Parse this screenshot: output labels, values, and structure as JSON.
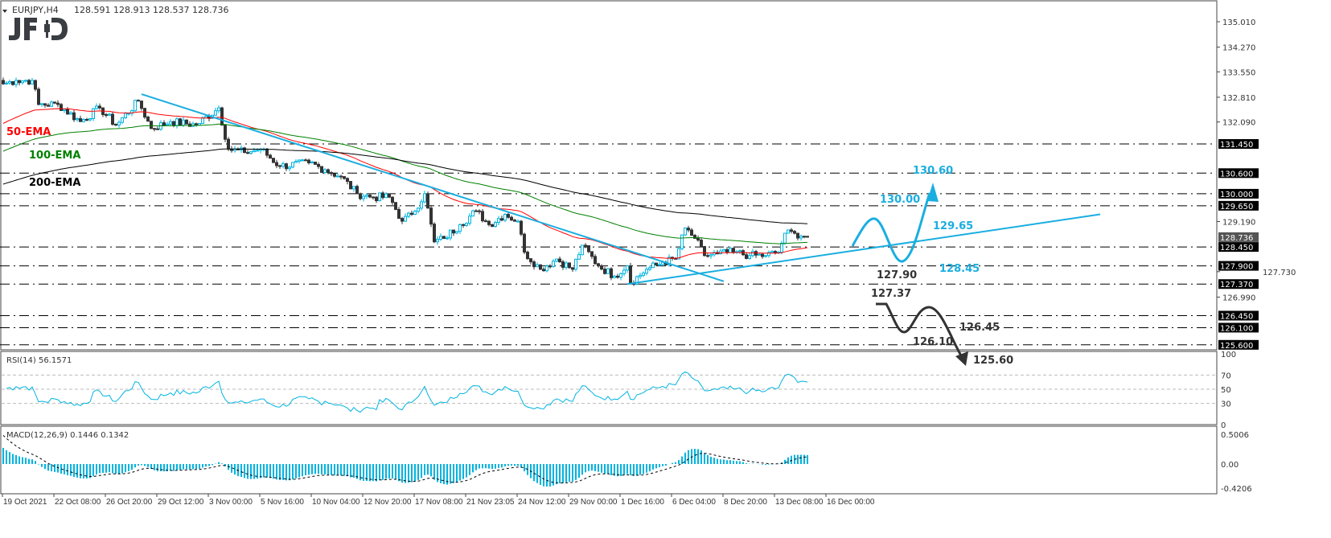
{
  "header": {
    "symbol": "EURJPY,H4",
    "ohlc": "128.591 128.913 128.537 128.736",
    "logo": "JFD"
  },
  "colors": {
    "bull": "#00b4e0",
    "bear": "#333333",
    "ema50": "#ff0000",
    "ema100": "#008000",
    "ema200": "#000000",
    "trend": "#1aaee0",
    "bearish_path": "#333333",
    "label_box": "#000000",
    "current_box": "#555555"
  },
  "chart_data": [
    {
      "type": "candlestick",
      "title": "EURJPY,H4",
      "timeframe": "H4",
      "ylim": [
        125.6,
        135.01
      ],
      "y_ticks": [
        "135.010",
        "134.270",
        "133.550",
        "132.810",
        "132.090",
        "129.190",
        "127.730",
        "126.990"
      ],
      "x_ticks": [
        "19 Oct 2021",
        "22 Oct 08:00",
        "26 Oct 20:00",
        "29 Oct 12:00",
        "3 Nov 00:00",
        "5 Nov 16:00",
        "10 Nov 04:00",
        "12 Nov 20:00",
        "17 Nov 08:00",
        "21 Nov 23:05",
        "24 Nov 12:00",
        "29 Nov 00:00",
        "1 Dec 16:00",
        "6 Dec 04:00",
        "8 Dec 20:00",
        "13 Dec 08:00",
        "16 Dec 00:00"
      ],
      "close_anchors": [
        [
          0,
          133.2
        ],
        [
          4,
          133.3
        ],
        [
          9,
          133.3
        ],
        [
          11,
          132.6
        ],
        [
          17,
          132.6
        ],
        [
          24,
          132.1
        ],
        [
          30,
          132.5
        ],
        [
          35,
          132.0
        ],
        [
          42,
          132.7
        ],
        [
          46,
          131.9
        ],
        [
          52,
          132.1
        ],
        [
          60,
          132.0
        ],
        [
          67,
          132.5
        ],
        [
          70,
          131.3
        ],
        [
          75,
          131.2
        ],
        [
          80,
          131.3
        ],
        [
          86,
          130.8
        ],
        [
          95,
          130.9
        ],
        [
          100,
          130.7
        ],
        [
          105,
          130.5
        ],
        [
          110,
          130.0
        ],
        [
          115,
          129.9
        ],
        [
          120,
          129.9
        ],
        [
          124,
          129.2
        ],
        [
          127,
          129.4
        ],
        [
          131,
          130.0
        ],
        [
          134,
          128.6
        ],
        [
          137,
          128.7
        ],
        [
          142,
          129.1
        ],
        [
          147,
          129.5
        ],
        [
          151,
          129.1
        ],
        [
          156,
          129.4
        ],
        [
          160,
          129.2
        ],
        [
          162,
          128.3
        ],
        [
          167,
          127.8
        ],
        [
          172,
          128.1
        ],
        [
          177,
          127.8
        ],
        [
          180,
          128.5
        ],
        [
          185,
          127.9
        ],
        [
          190,
          127.6
        ],
        [
          194,
          127.9
        ],
        [
          195,
          127.4
        ],
        [
          200,
          127.8
        ],
        [
          205,
          128.0
        ],
        [
          209,
          128.1
        ],
        [
          212,
          129.0
        ],
        [
          215,
          128.7
        ],
        [
          218,
          128.2
        ],
        [
          222,
          128.25
        ],
        [
          227,
          128.3
        ],
        [
          232,
          128.2
        ],
        [
          237,
          128.2
        ],
        [
          241,
          128.3
        ],
        [
          243,
          128.85
        ],
        [
          246,
          128.85
        ],
        [
          250,
          128.74
        ]
      ],
      "ema_seed": {
        "ema50": 132.0,
        "ema100": 131.2,
        "ema200": 130.25
      },
      "ema_labels": [
        "50-EMA",
        "100-EMA",
        "200-EMA"
      ],
      "levels": [
        {
          "price": 131.45,
          "label": "131.450"
        },
        {
          "price": 130.6,
          "label": "130.600"
        },
        {
          "price": 130.0,
          "label": "130.000"
        },
        {
          "price": 129.65,
          "label": "129.650"
        },
        {
          "price": 128.45,
          "label": "128.450"
        },
        {
          "price": 127.9,
          "label": "127.900"
        },
        {
          "price": 127.37,
          "label": "127.370"
        },
        {
          "price": 126.45,
          "label": "126.450"
        },
        {
          "price": 126.1,
          "label": "126.100"
        },
        {
          "price": 125.6,
          "label": "125.600"
        }
      ],
      "current_price": "128.736",
      "trendlines": [
        {
          "name": "downtrend",
          "from": [
            43,
            132.9
          ],
          "to": [
            224,
            127.45
          ]
        },
        {
          "name": "uptrend",
          "from": [
            194,
            127.37
          ],
          "to": [
            341,
            129.4
          ]
        }
      ],
      "scenario_bullish": [
        "130.60",
        "130.00",
        "129.65",
        "128.45"
      ],
      "scenario_bearish": [
        "127.90",
        "127.37",
        "126.45",
        "126.10",
        "125.60"
      ]
    },
    {
      "type": "line",
      "title": "RSI(14) 56.1571",
      "ylim": [
        0,
        100
      ],
      "levels": [
        70,
        50,
        30
      ],
      "y_ticks": [
        "100",
        "70",
        "50",
        "30",
        "0"
      ]
    },
    {
      "type": "bar",
      "title": "MACD(12,26,9) 0.1446 0.1342",
      "ylim": [
        -0.4206,
        0.5006
      ],
      "y_ticks": [
        "0.5006",
        "0.00",
        "-0.4206"
      ]
    }
  ]
}
